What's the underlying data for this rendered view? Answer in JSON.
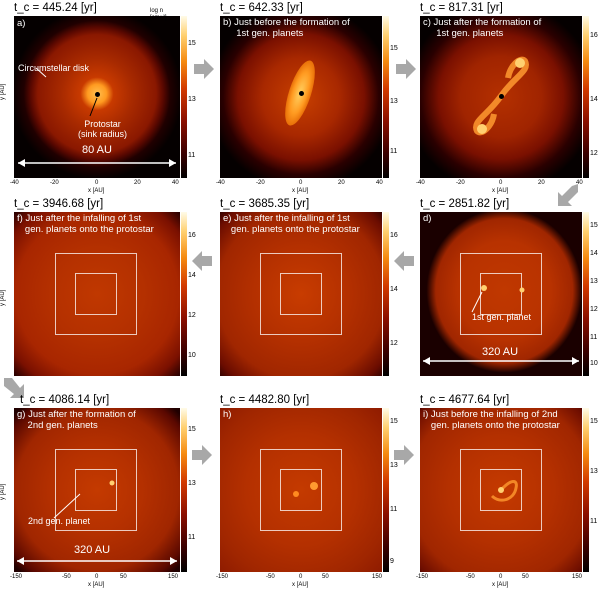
{
  "panels": [
    {
      "time": "t_c = 445.24 [yr]",
      "caption": "a)",
      "cbar_ticks": [
        "15",
        "13",
        "11"
      ],
      "cbar_label": "log n [cm⁻³]"
    },
    {
      "time": "t_c = 642.33 [yr]",
      "caption": "b) Just before the formation of\n     1st gen. planets",
      "cbar_ticks": [
        "15",
        "13",
        "11"
      ]
    },
    {
      "time": "t_c = 817.31 [yr]",
      "caption": "c) Just after the formation of\n     1st gen. planets",
      "cbar_ticks": [
        "16",
        "14",
        "12"
      ]
    },
    {
      "time": "t_c = 3946.68 [yr]",
      "caption": "f) Just after the infalling of 1st\n   gen. planets onto the protostar",
      "cbar_ticks": [
        "16",
        "14",
        "12",
        "10"
      ]
    },
    {
      "time": "t_c = 3685.35 [yr]",
      "caption": "e) Just after the infalling of 1st\n   gen. planets onto the protostar",
      "cbar_ticks": [
        "16",
        "14",
        "12"
      ]
    },
    {
      "time": "t_c = 2851.82 [yr]",
      "caption": "d)",
      "cbar_ticks": [
        "15",
        "14",
        "13",
        "12",
        "11",
        "10"
      ]
    },
    {
      "time": "t_c = 4086.14 [yr]",
      "caption": "g) Just after the formation of\n    2nd gen. planets",
      "cbar_ticks": [
        "15",
        "13",
        "11"
      ]
    },
    {
      "time": "t_c = 4482.80 [yr]",
      "caption": "h)",
      "cbar_ticks": [
        "15",
        "13",
        "11",
        "9"
      ]
    },
    {
      "time": "t_c = 4677.64 [yr]",
      "caption": "i) Just before the infalling of 2nd\n   gen. planets onto the protostar",
      "cbar_ticks": [
        "15",
        "13",
        "11"
      ]
    }
  ],
  "annotations": {
    "disk": "Circumstellar disk",
    "protostar": "Protostar\n(sink radius)",
    "scale_small": "80 AU",
    "planet1": "1st gen. planet",
    "planet2": "2nd gen. planet",
    "scale_large_d": "320 AU",
    "scale_large_g": "320 AU"
  },
  "axes": {
    "x_label": "x [AU]",
    "y_label": "y [AU]",
    "small_ticks": [
      "-40",
      "-20",
      "0",
      "20",
      "40"
    ],
    "large_ticks": [
      "-150",
      "-100",
      "-50",
      "0",
      "50",
      "100",
      "150"
    ]
  },
  "colors": {
    "flow_arrow": "#a8a8a8",
    "disk_core": "#ffb040",
    "disk_edge": "#b02000"
  }
}
